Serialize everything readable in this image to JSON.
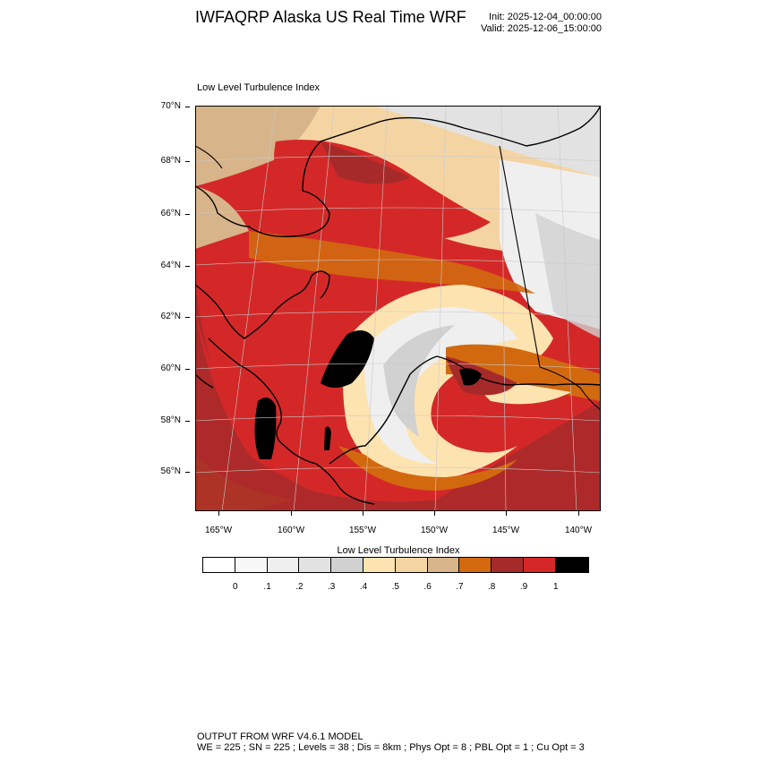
{
  "header": {
    "title": "IWFAQRP Alaska US Real Time WRF",
    "init": "Init: 2025-12-04_00:00:00",
    "valid": "Valid: 2025-12-06_15:00:00"
  },
  "map": {
    "subtitle": "Low Level Turbulence Index",
    "lat_labels": [
      "70°N",
      "68°N",
      "66°N",
      "64°N",
      "62°N",
      "60°N",
      "58°N",
      "56°N"
    ],
    "lon_labels": [
      "165°W",
      "160°W",
      "155°W",
      "150°W",
      "145°W",
      "140°W"
    ]
  },
  "colorbar": {
    "title": "Low Level Turbulence Index",
    "labels": [
      "0",
      ".1",
      ".2",
      ".3",
      ".4",
      ".5",
      ".6",
      ".7",
      ".8",
      ".9",
      "1"
    ],
    "colors": [
      "#ffffff",
      "#f7f7f7",
      "#efefef",
      "#e2e2e2",
      "#d1d1d1",
      "#fde3b0",
      "#f5d4a3",
      "#d8b48a",
      "#d2690f",
      "#a72a2a",
      "#d42828",
      "#000000"
    ]
  },
  "footer": {
    "line1": "OUTPUT FROM WRF V4.6.1 MODEL",
    "line2": "WE = 225 ; SN = 225 ; Levels = 38 ; Dis = 8km ; Phys Opt = 8 ; PBL Opt = 1 ; Cu Opt = 3"
  }
}
